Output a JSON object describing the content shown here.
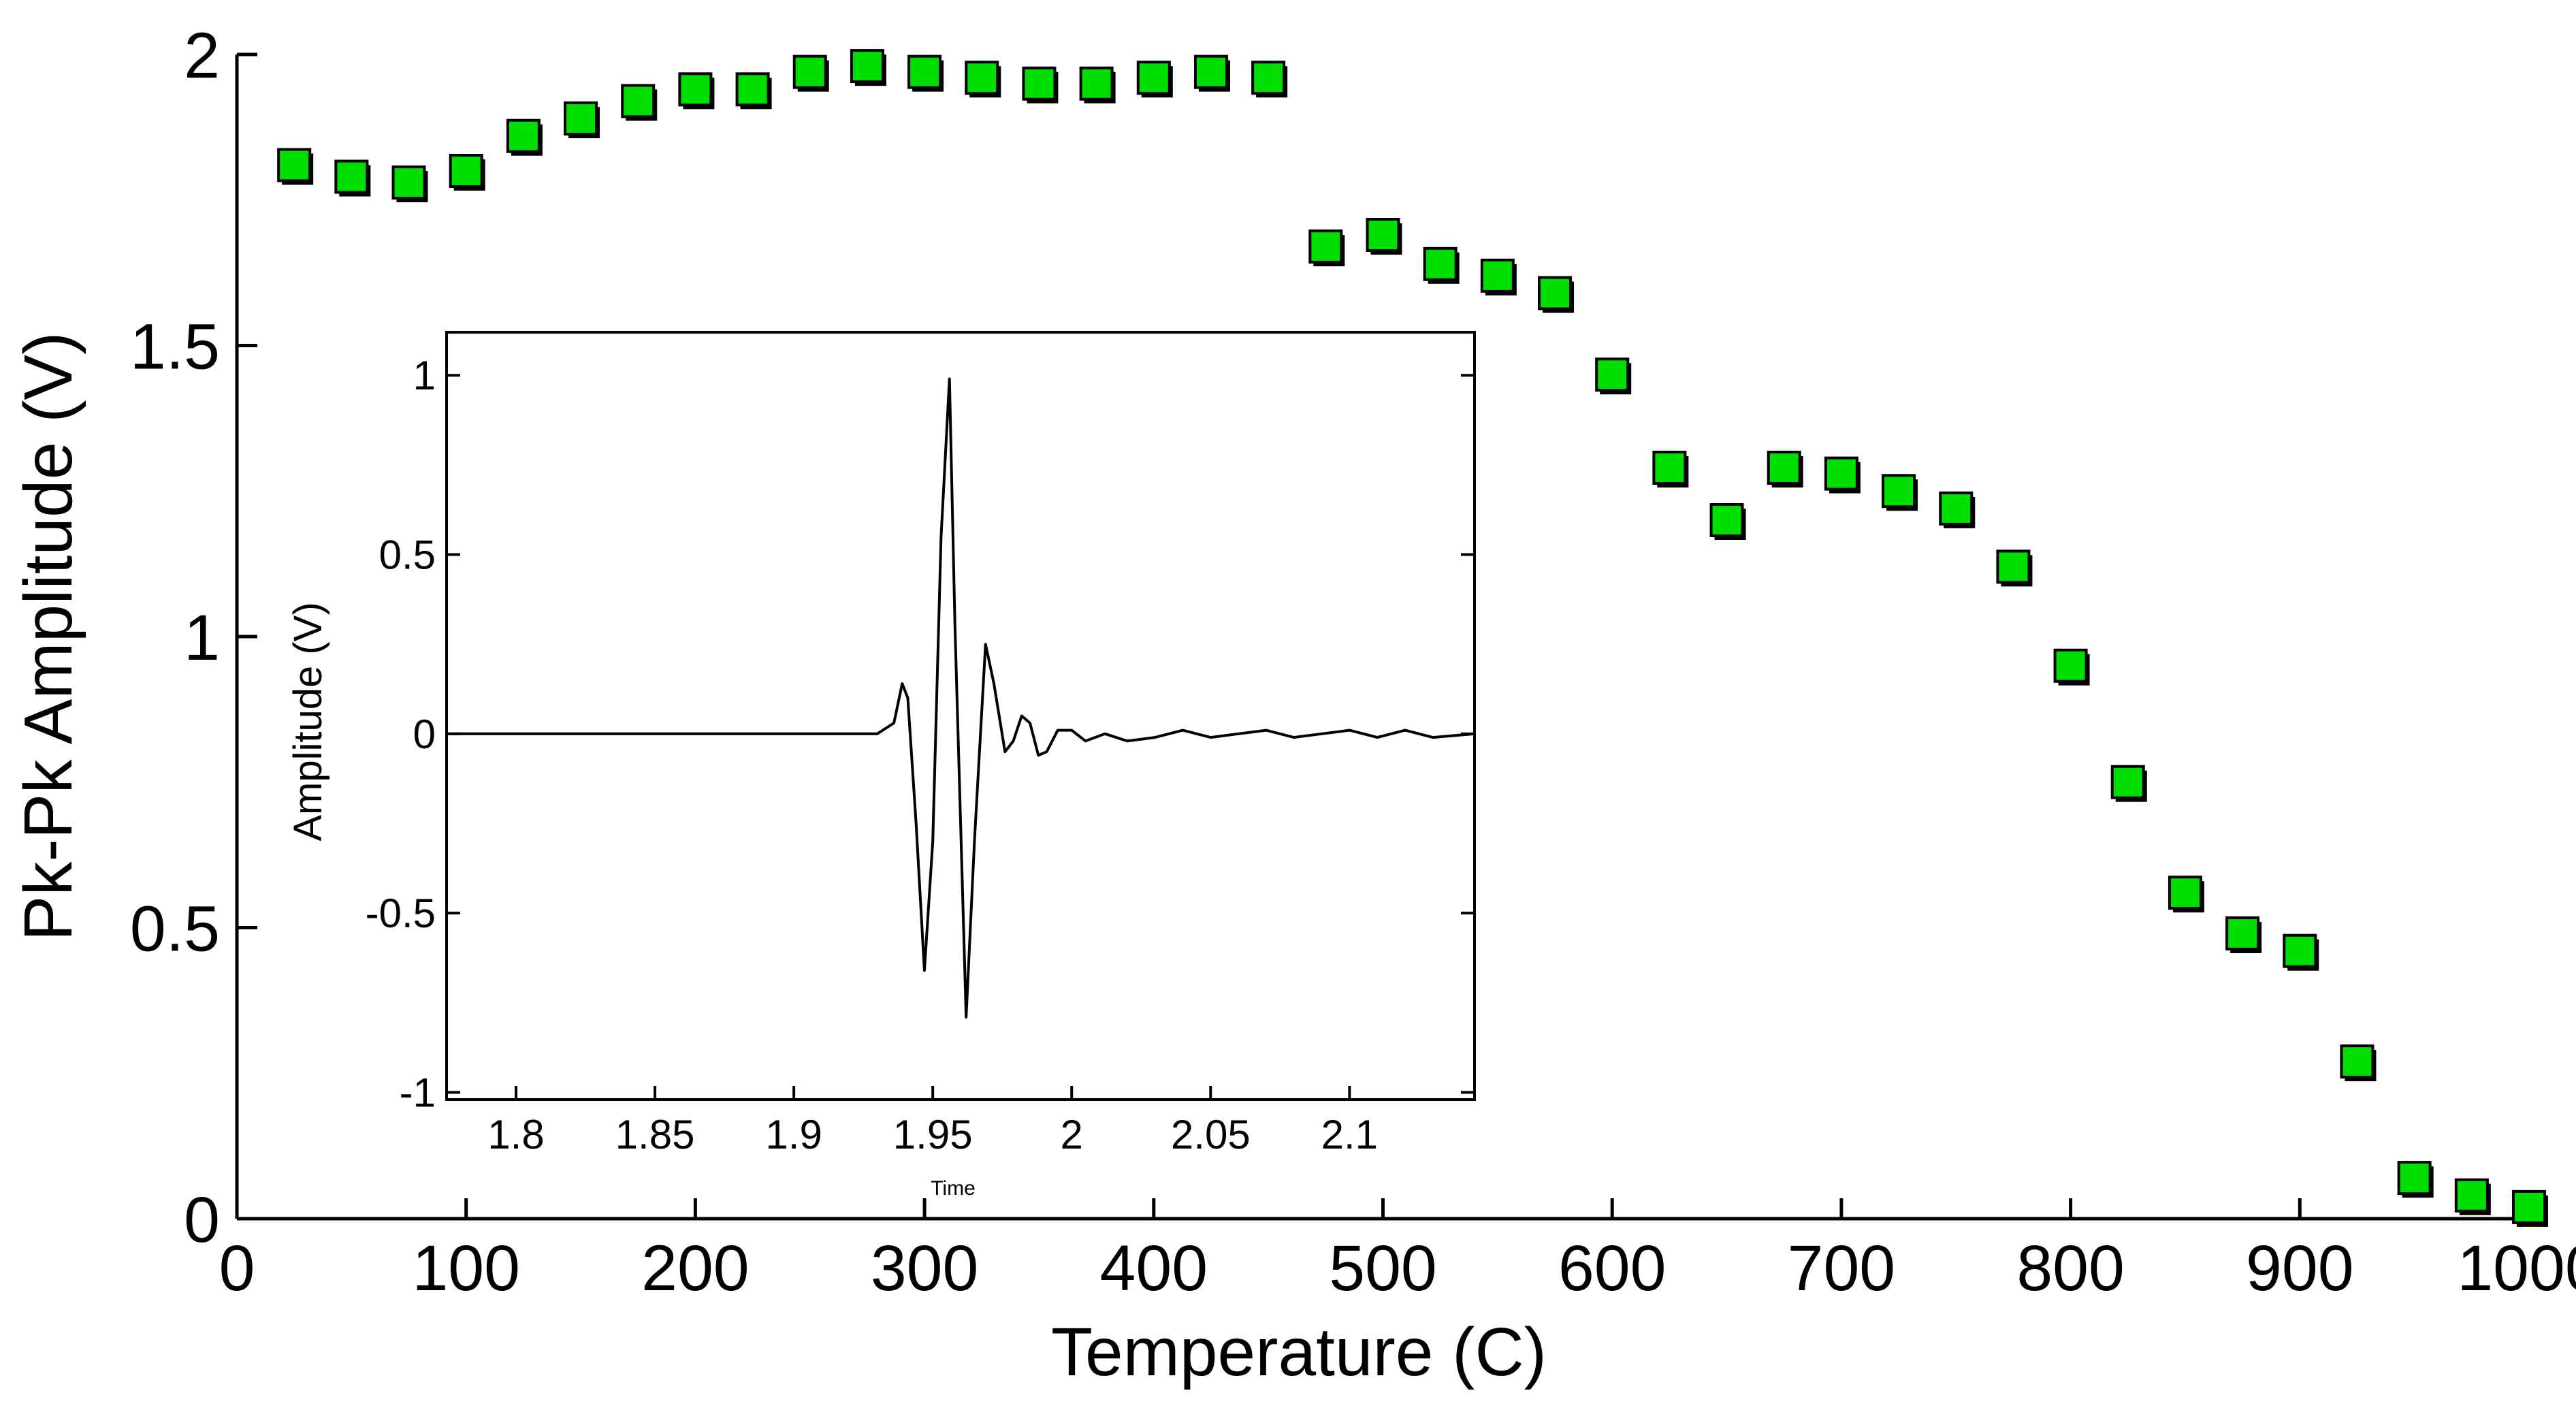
{
  "chart_data": [
    {
      "type": "scatter",
      "title": "",
      "xlabel": "Temperature (C)",
      "ylabel": "Pk-Pk Amplitude (V)",
      "xlim": [
        0,
        1000
      ],
      "ylim": [
        0,
        2
      ],
      "xticks": [
        0,
        100,
        200,
        300,
        400,
        500,
        600,
        700,
        800,
        900,
        1000
      ],
      "xtick_labels": [
        "0",
        "100",
        "200",
        "300",
        "400",
        "500",
        "600",
        "700",
        "800",
        "900",
        "1000"
      ],
      "yticks": [
        0,
        0.5,
        1,
        1.5,
        2
      ],
      "ytick_labels": [
        "0",
        "0.5",
        "1",
        "1.5",
        "2"
      ],
      "marker": "square",
      "marker_color": "#00dd00",
      "grid": false,
      "legend": "none",
      "series": [
        {
          "x": [
            25,
            50,
            75,
            100,
            125,
            150,
            175,
            200,
            225,
            250,
            275,
            300,
            325,
            350,
            375,
            400,
            425,
            450,
            475,
            500,
            525,
            550,
            575,
            600,
            625,
            650,
            675,
            700,
            725,
            750,
            775,
            800,
            825,
            850,
            875,
            900,
            925,
            950,
            975,
            1000
          ],
          "y": [
            1.81,
            1.79,
            1.78,
            1.8,
            1.86,
            1.89,
            1.92,
            1.94,
            1.94,
            1.97,
            1.98,
            1.97,
            1.96,
            1.95,
            1.95,
            1.96,
            1.97,
            1.96,
            1.67,
            1.69,
            1.64,
            1.62,
            1.59,
            1.45,
            1.29,
            1.2,
            1.29,
            1.28,
            1.25,
            1.22,
            1.12,
            0.95,
            0.75,
            0.56,
            0.49,
            0.46,
            0.27,
            0.07,
            0.04,
            0.02
          ]
        }
      ]
    },
    {
      "type": "line",
      "title": "",
      "xlabel": "Time",
      "ylabel": "Amplitude (V)",
      "xlim": [
        1.775,
        2.145
      ],
      "ylim": [
        -1.02,
        1.12
      ],
      "xticks": [
        1.8,
        1.85,
        1.9,
        1.95,
        2,
        2.05,
        2.1
      ],
      "xtick_labels": [
        "1.8",
        "1.85",
        "1.9",
        "1.95",
        "2",
        "2.05",
        "2.1"
      ],
      "yticks": [
        -1,
        -0.5,
        0,
        0.5,
        1
      ],
      "ytick_labels": [
        "-1",
        "-0.5",
        "0",
        "0.5",
        "1"
      ],
      "line_color": "#000000",
      "grid": false,
      "legend": "none",
      "series": [
        {
          "x": [
            1.775,
            1.93,
            1.936,
            1.939,
            1.941,
            1.944,
            1.947,
            1.95,
            1.953,
            1.956,
            1.958,
            1.962,
            1.965,
            1.969,
            1.972,
            1.976,
            1.979,
            1.982,
            1.985,
            1.988,
            1.991,
            1.995,
            2.0,
            2.005,
            2.012,
            2.02,
            2.03,
            2.04,
            2.05,
            2.06,
            2.07,
            2.08,
            2.09,
            2.1,
            2.11,
            2.12,
            2.13,
            2.145
          ],
          "y": [
            0,
            0,
            0.03,
            0.14,
            0.1,
            -0.25,
            -0.66,
            -0.3,
            0.55,
            0.99,
            0.3,
            -0.79,
            -0.3,
            0.25,
            0.14,
            -0.05,
            -0.02,
            0.05,
            0.03,
            -0.06,
            -0.05,
            0.01,
            0.01,
            -0.02,
            0.0,
            -0.02,
            -0.01,
            0.01,
            -0.01,
            0.0,
            0.01,
            -0.01,
            0.0,
            0.01,
            -0.01,
            0.01,
            -0.01,
            0.0
          ]
        }
      ]
    }
  ]
}
